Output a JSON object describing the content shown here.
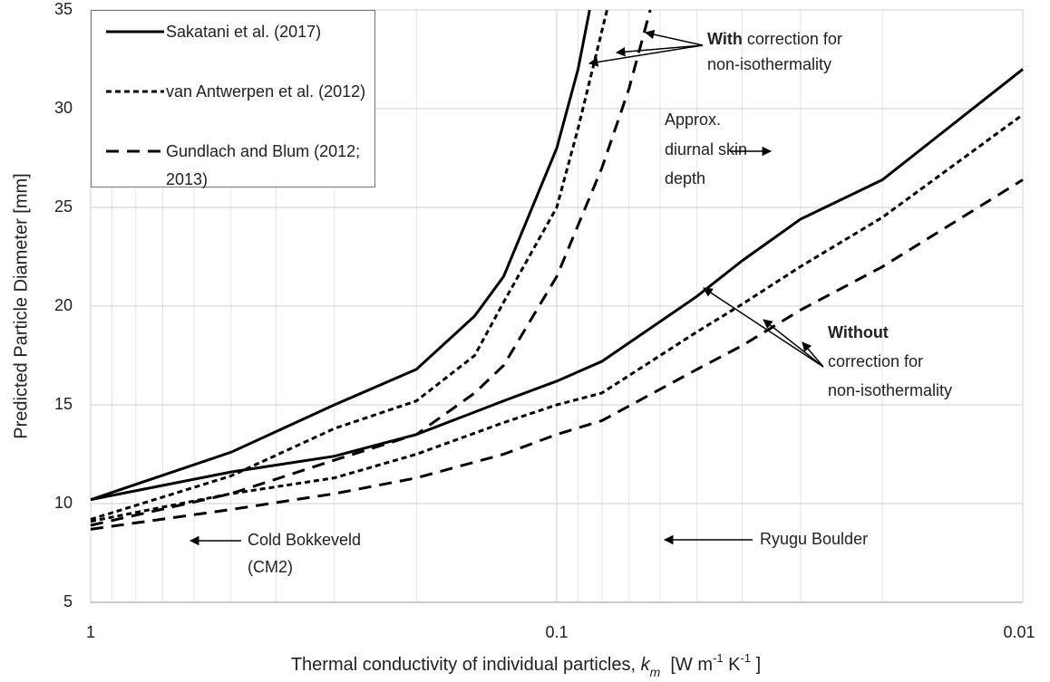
{
  "chart_data": {
    "type": "line",
    "y_label": "Predicted Particle Diameter [mm]",
    "x_label_parts": [
      "Thermal conductivity of individual particles, ",
      "k",
      "m",
      "  [W m",
      "-1",
      " K",
      "-1",
      " ]"
    ],
    "xlog": true,
    "grid": true,
    "xlim": [
      1,
      0.01
    ],
    "xticks": [
      1,
      0.1,
      0.01
    ],
    "x_minor_ticks": [
      0.9,
      0.8,
      0.7,
      0.6,
      0.5,
      0.4,
      0.3,
      0.2,
      0.09,
      0.08,
      0.07,
      0.06,
      0.05,
      0.04,
      0.03,
      0.02
    ],
    "ylim": [
      5,
      35
    ],
    "yticks": [
      5,
      10,
      15,
      20,
      25,
      30,
      35
    ],
    "series": [
      {
        "name": "Sakatani et al. (2017)",
        "color": "#000000",
        "dash": "solid",
        "x": [
          1,
          0.5,
          0.3,
          0.2,
          0.15,
          0.13,
          0.1,
          0.09,
          0.085
        ],
        "values": [
          10.2,
          12.6,
          15.0,
          16.8,
          19.5,
          21.5,
          28.0,
          32.0,
          35.0
        ]
      },
      {
        "name": "van Antwerpen et al. (2012)",
        "color": "#000000",
        "dash": "short",
        "x": [
          1,
          0.5,
          0.3,
          0.2,
          0.15,
          0.13,
          0.1,
          0.09,
          0.078
        ],
        "values": [
          9.2,
          11.4,
          13.8,
          15.2,
          17.5,
          20.2,
          25.0,
          29.0,
          35.0
        ]
      },
      {
        "name": "Gundlach and Blum (2012; 2013)",
        "color": "#000000",
        "dash": "long",
        "x": [
          1,
          0.5,
          0.3,
          0.2,
          0.15,
          0.13,
          0.1,
          0.08,
          0.07,
          0.063
        ],
        "values": [
          8.9,
          10.5,
          12.2,
          13.5,
          15.6,
          17.0,
          21.5,
          27.0,
          31.0,
          35.0
        ]
      },
      {
        "color": "#000000",
        "dash": "solid",
        "x": [
          1,
          0.5,
          0.3,
          0.2,
          0.13,
          0.1,
          0.08,
          0.05,
          0.04,
          0.03,
          0.02,
          0.01
        ],
        "values": [
          10.2,
          11.6,
          12.4,
          13.5,
          15.2,
          16.2,
          17.2,
          20.5,
          22.3,
          24.4,
          26.4,
          32.0
        ]
      },
      {
        "color": "#000000",
        "dash": "short",
        "x": [
          1,
          0.5,
          0.3,
          0.2,
          0.13,
          0.1,
          0.08,
          0.05,
          0.04,
          0.03,
          0.02,
          0.01
        ],
        "values": [
          9.1,
          10.5,
          11.3,
          12.5,
          14.1,
          15.0,
          15.6,
          18.7,
          20.1,
          22.0,
          24.5,
          29.7
        ]
      },
      {
        "color": "#000000",
        "dash": "long",
        "x": [
          1,
          0.5,
          0.3,
          0.2,
          0.13,
          0.1,
          0.08,
          0.05,
          0.04,
          0.03,
          0.02,
          0.01
        ],
        "values": [
          8.7,
          9.7,
          10.5,
          11.3,
          12.5,
          13.5,
          14.2,
          16.8,
          18.0,
          19.8,
          22.0,
          26.4
        ]
      }
    ],
    "annotations": [
      "With",
      " correction for",
      "non-isothermality",
      "Approx.",
      "diurnal skin",
      "depth",
      "Without",
      "correction for",
      "non-isothermality",
      "Cold Bokkeveld",
      "(CM2)",
      "Ryugu Boulder"
    ]
  }
}
